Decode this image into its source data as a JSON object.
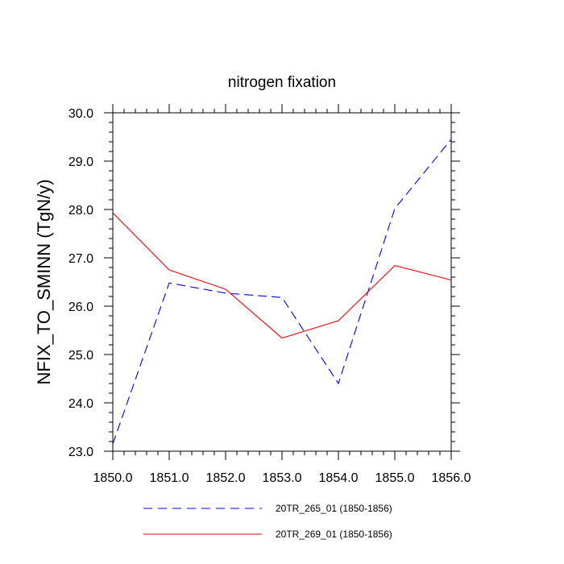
{
  "chart_data": {
    "type": "line",
    "title": "nitrogen fixation",
    "xlabel": "",
    "ylabel": "NFIX_TO_SMINN  (TgN/y)",
    "xlim": [
      1850,
      1856
    ],
    "ylim": [
      23.0,
      30.0
    ],
    "xticks": [
      "1850.0",
      "1851.0",
      "1852.0",
      "1853.0",
      "1854.0",
      "1855.0",
      "1856.0"
    ],
    "yticks": [
      "23.0",
      "24.0",
      "25.0",
      "26.0",
      "27.0",
      "28.0",
      "29.0",
      "30.0"
    ],
    "x": [
      1850,
      1851,
      1852,
      1853,
      1854,
      1855,
      1856
    ],
    "series": [
      {
        "name": "20TR_265_01 (1850-1856)",
        "color": "#0000ff",
        "style": "dashed",
        "values": [
          23.15,
          26.48,
          26.27,
          26.18,
          24.4,
          28.02,
          29.45
        ]
      },
      {
        "name": "20TR_269_01 (1850-1856)",
        "color": "#ff0000",
        "style": "solid",
        "values": [
          27.93,
          26.75,
          26.35,
          25.34,
          25.7,
          26.84,
          26.54
        ]
      }
    ]
  }
}
